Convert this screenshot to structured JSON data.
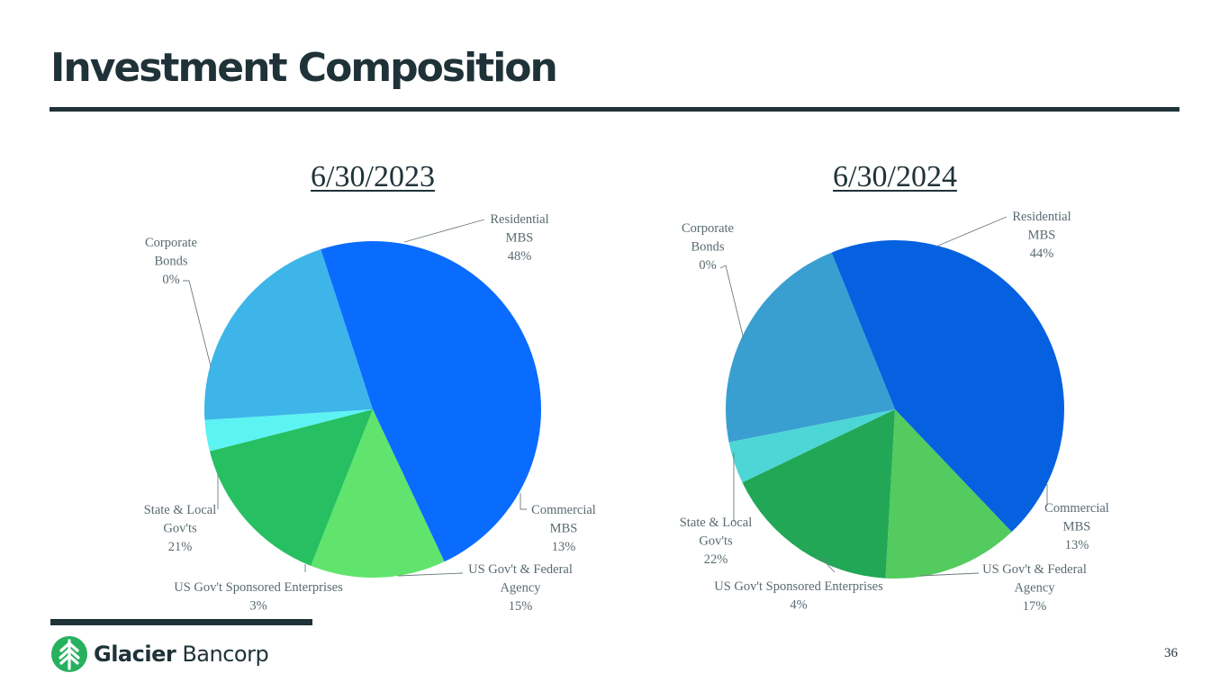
{
  "title": "Investment Composition",
  "page_number": "36",
  "brand": {
    "bold": "Glacier",
    "light": " Bancorp"
  },
  "chart_data": [
    {
      "type": "pie",
      "title": "6/30/2023",
      "slices": [
        {
          "name": "Residential MBS",
          "value": 48,
          "label_lines": [
            "Residential",
            "MBS",
            "48%"
          ],
          "color": "#0a6cff"
        },
        {
          "name": "Commercial MBS",
          "value": 13,
          "label_lines": [
            "Commercial",
            "MBS",
            "13%"
          ],
          "color": "#60e46e"
        },
        {
          "name": "US Gov't & Federal Agency",
          "value": 15,
          "label_lines": [
            "US Gov't & Federal",
            "Agency",
            "15%"
          ],
          "color": "#26bf62"
        },
        {
          "name": "US Gov't Sponsored Enterprises",
          "value": 3,
          "label_lines": [
            "US Gov't Sponsored Enterprises",
            "3%"
          ],
          "color": "#5cf3f2"
        },
        {
          "name": "State & Local Gov'ts",
          "value": 21,
          "label_lines": [
            "State & Local",
            "Gov'ts",
            "21%"
          ],
          "color": "#3db5e8"
        },
        {
          "name": "Corporate Bonds",
          "value": 0,
          "label_lines": [
            "Corporate",
            "Bonds",
            "0%"
          ],
          "color": "#1d56c9"
        }
      ]
    },
    {
      "type": "pie",
      "title": "6/30/2024",
      "slices": [
        {
          "name": "Residential MBS",
          "value": 44,
          "label_lines": [
            "Residential",
            "MBS",
            "44%"
          ],
          "color": "#0661e0"
        },
        {
          "name": "Commercial MBS",
          "value": 13,
          "label_lines": [
            "Commercial",
            "MBS",
            "13%"
          ],
          "color": "#53cb5e"
        },
        {
          "name": "US Gov't & Federal Agency",
          "value": 17,
          "label_lines": [
            "US Gov't & Federal",
            "Agency",
            "17%"
          ],
          "color": "#22a756"
        },
        {
          "name": "US Gov't Sponsored Enterprises",
          "value": 4,
          "label_lines": [
            "US Gov't Sponsored Enterprises",
            "4%"
          ],
          "color": "#4dd6d6"
        },
        {
          "name": "State & Local Gov'ts",
          "value": 22,
          "label_lines": [
            "State & Local",
            "Gov'ts",
            "22%"
          ],
          "color": "#399fd0"
        },
        {
          "name": "Corporate Bonds",
          "value": 0,
          "label_lines": [
            "Corporate",
            "Bonds",
            "0%"
          ],
          "color": "#1d56c9"
        }
      ]
    }
  ]
}
